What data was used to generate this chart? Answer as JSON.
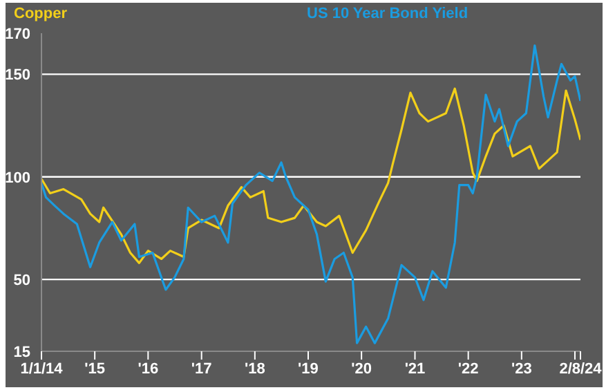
{
  "chart_data": {
    "type": "line",
    "series": [
      {
        "name": "Copper",
        "color": "#f2cf1a",
        "x": [
          "2014-01",
          "2014-03",
          "2014-06",
          "2014-10",
          "2014-12",
          "2015-02",
          "2015-03",
          "2015-07",
          "2015-09",
          "2015-11",
          "2016-01",
          "2016-04",
          "2016-06",
          "2016-09",
          "2016-10",
          "2017-01",
          "2017-05",
          "2017-07",
          "2017-09",
          "2017-10",
          "2017-12",
          "2018-03",
          "2018-04",
          "2018-07",
          "2018-10",
          "2018-12",
          "2019-03",
          "2019-05",
          "2019-08",
          "2019-11",
          "2020-02",
          "2020-05",
          "2020-07",
          "2020-08",
          "2020-10",
          "2020-12",
          "2021-02",
          "2021-04",
          "2021-08",
          "2021-10",
          "2021-12",
          "2022-02",
          "2022-03",
          "2022-05",
          "2022-07",
          "2022-09",
          "2022-11",
          "2023-03",
          "2023-05",
          "2023-09",
          "2023-11",
          "2024-01",
          "2024-02-08"
        ],
        "values": [
          99,
          92,
          94,
          89,
          82,
          78,
          85,
          72,
          63,
          58,
          64,
          60,
          64,
          61,
          75,
          79,
          75,
          86,
          92,
          95,
          90,
          93,
          80,
          78,
          80,
          86,
          78,
          76,
          81,
          63,
          74,
          88,
          97,
          106,
          123,
          141,
          131,
          127,
          131,
          143,
          125,
          102,
          98,
          110,
          121,
          125,
          110,
          115,
          104,
          112,
          142,
          128,
          118
        ]
      },
      {
        "name": "US 10 Year Bond Yield",
        "color": "#1b9ce0",
        "x": [
          "2014-01",
          "2014-02",
          "2014-04",
          "2014-06",
          "2014-09",
          "2014-12",
          "2015-02",
          "2015-05",
          "2015-07",
          "2015-10",
          "2015-11",
          "2016-02",
          "2016-05",
          "2016-07",
          "2016-09",
          "2016-10",
          "2017-01",
          "2017-04",
          "2017-07",
          "2017-08",
          "2017-11",
          "2018-02",
          "2018-05",
          "2018-07",
          "2018-08",
          "2018-10",
          "2019-01",
          "2019-03",
          "2019-05",
          "2019-07",
          "2019-09",
          "2019-11",
          "2019-12",
          "2020-02",
          "2020-04",
          "2020-07",
          "2020-10",
          "2021-01",
          "2021-03",
          "2021-05",
          "2021-08",
          "2021-10",
          "2021-11",
          "2022-01",
          "2022-02",
          "2022-03",
          "2022-05",
          "2022-07",
          "2022-08",
          "2022-10",
          "2022-12",
          "2023-02",
          "2023-04",
          "2023-06",
          "2023-07",
          "2023-09",
          "2023-10",
          "2023-12",
          "2024-01",
          "2024-02-08"
        ],
        "values": [
          97,
          90,
          86,
          82,
          77,
          56,
          68,
          78,
          69,
          77,
          61,
          63,
          45,
          51,
          60,
          85,
          78,
          81,
          68,
          87,
          96,
          102,
          98,
          107,
          100,
          90,
          84,
          72,
          49,
          60,
          63,
          51,
          19,
          27,
          19,
          31,
          57,
          51,
          40,
          54,
          46,
          68,
          96,
          96,
          92,
          100,
          140,
          127,
          133,
          115,
          127,
          131,
          164,
          139,
          129,
          147,
          155,
          147,
          149,
          137
        ]
      }
    ],
    "xlim": [
      "2014-01-01",
      "2024-02-08"
    ],
    "xticks": [
      {
        "value": "2014-01-01",
        "label": "1/1/14"
      },
      {
        "value": "2015-01-01",
        "label": "'15"
      },
      {
        "value": "2016-01-01",
        "label": "'16"
      },
      {
        "value": "2017-01-01",
        "label": "'17"
      },
      {
        "value": "2018-01-01",
        "label": "'18"
      },
      {
        "value": "2019-01-01",
        "label": "'19"
      },
      {
        "value": "2020-01-01",
        "label": "'20"
      },
      {
        "value": "2021-01-01",
        "label": "'21"
      },
      {
        "value": "2022-01-01",
        "label": "'22"
      },
      {
        "value": "2023-01-01",
        "label": "'23"
      },
      {
        "value": "2024-01-01",
        "label": null
      },
      {
        "value": "2024-02-08",
        "label": "2/8/24"
      }
    ],
    "ylim": [
      15,
      170
    ],
    "yticks": [
      15,
      50,
      100,
      150,
      170
    ],
    "grid": "y",
    "legend": "top",
    "marker": "none",
    "line_style": "solid"
  }
}
